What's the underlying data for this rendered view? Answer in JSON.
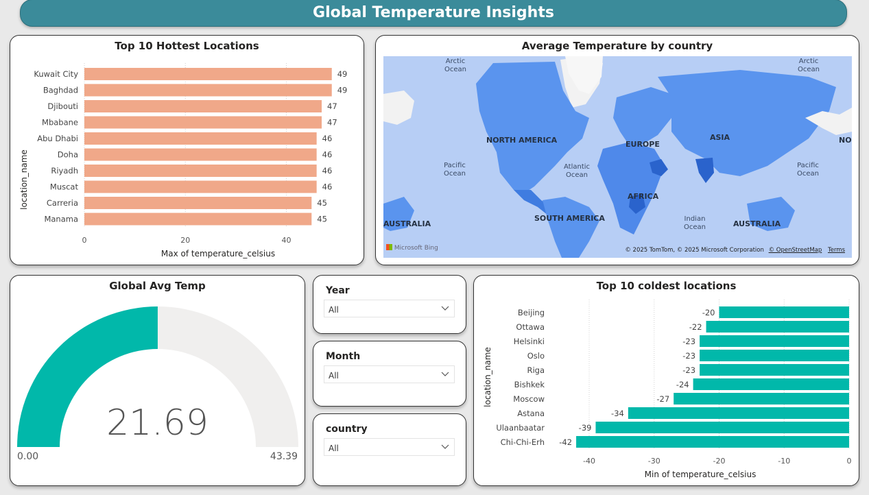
{
  "header": {
    "title": "Global Temperature Insights"
  },
  "hottest": {
    "title": "Top 10 Hottest Locations",
    "ylabel": "location_name",
    "xlabel": "Max of temperature_celsius",
    "ticks": [
      "0",
      "20",
      "40"
    ],
    "bar_color": "#f0a889",
    "chart_data": {
      "type": "bar",
      "orientation": "horizontal",
      "categories": [
        "Kuwait City",
        "Baghdad",
        "Djibouti",
        "Mbabane",
        "Abu Dhabi",
        "Doha",
        "Riyadh",
        "Muscat",
        "Carreria",
        "Manama"
      ],
      "values": [
        49,
        49,
        47,
        47,
        46,
        46,
        46,
        46,
        45,
        45
      ],
      "labels": [
        "49",
        "49",
        "47",
        "47",
        "46",
        "46",
        "46",
        "46",
        "45",
        "45"
      ],
      "xlim": [
        0,
        50
      ]
    }
  },
  "map": {
    "title": "Average Temperature by country",
    "labels": {
      "arctic_left": "Arctic Ocean",
      "arctic_right": "Arctic Ocean",
      "north_america": "NORTH AMERICA",
      "europe": "EUROPE",
      "asia": "ASIA",
      "no": "NO",
      "pacific_left": "Pacific Ocean",
      "atlantic": "Atlantic Ocean",
      "pacific_right": "Pacific Ocean",
      "africa": "AFRICA",
      "south_america": "SOUTH AMERICA",
      "indian": "Indian Ocean",
      "australia_left": "AUSTRALIA",
      "australia_right": "AUSTRALIA"
    },
    "attribution": "© 2025 TomTom, © 2025 Microsoft Corporation",
    "osm": "© OpenStreetMap",
    "terms": "Terms",
    "bing": "Microsoft Bing"
  },
  "gauge": {
    "title": "Global Avg Temp",
    "value": 21.69,
    "value_text": "21.69",
    "min_text": "0.00",
    "max_text": "43.39",
    "fill_color": "#01b8aa",
    "track_color": "#f0efee"
  },
  "slicers": {
    "year": {
      "title": "Year",
      "value": "All"
    },
    "month": {
      "title": "Month",
      "value": "All"
    },
    "country": {
      "title": "country",
      "value": "All"
    }
  },
  "coldest": {
    "title": "Top 10 coldest locations",
    "ylabel": "location_name",
    "xlabel": "Min of temperature_celsius",
    "ticks": [
      "-40",
      "-30",
      "-20",
      "-10",
      "0"
    ],
    "bar_color": "#01b8aa",
    "chart_data": {
      "type": "bar",
      "orientation": "horizontal",
      "categories": [
        "Beijing",
        "Ottawa",
        "Helsinki",
        "Oslo",
        "Riga",
        "Bishkek",
        "Moscow",
        "Astana",
        "Ulaanbaatar",
        "Chi-Chi-Erh"
      ],
      "values": [
        -20,
        -22,
        -23,
        -23,
        -23,
        -24,
        -27,
        -34,
        -39,
        -42
      ],
      "labels": [
        "-20",
        "-22",
        "-23",
        "-23",
        "-23",
        "-24",
        "-27",
        "-34",
        "-39",
        "-42"
      ],
      "xlim": [
        -42,
        0
      ]
    }
  }
}
